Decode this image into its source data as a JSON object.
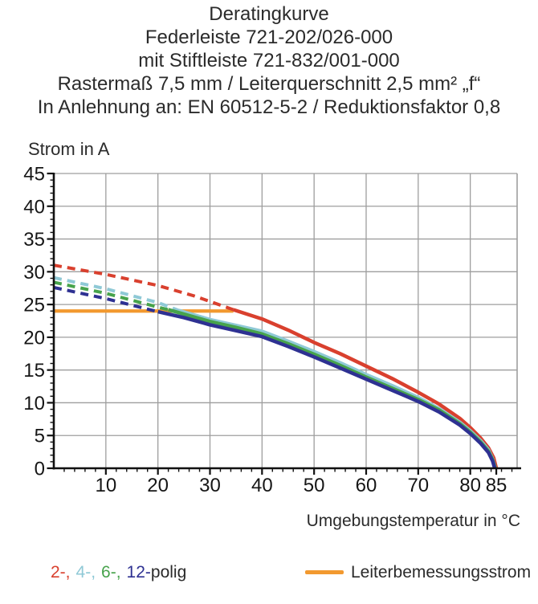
{
  "page": {
    "title_lines": [
      "Deratingkurve",
      "Federleiste 721-202/026-000",
      "mit Stiftleiste 721-832/001-000",
      "Rastermaß 7,5 mm / Leiterquerschnitt 2,5 mm² „f“",
      "In Anlehnung an: EN 60512-5-2 / Reduktionsfaktor 0,8"
    ],
    "legend": {
      "pole_items": [
        {
          "text": "2-,",
          "color": "#d9402e"
        },
        {
          "text": "4-,",
          "color": "#8fc9d6"
        },
        {
          "text": "6-,",
          "color": "#47a34c"
        },
        {
          "text": "12-",
          "color": "#2e3192"
        },
        {
          "text": "polig",
          "color": "#2a2a2a"
        }
      ],
      "rated_label": "Leiterbemessungsstrom",
      "rated_color": "#f2992f"
    }
  },
  "chart_data": {
    "type": "line",
    "title": "Deratingkurve",
    "xlabel": "Umgebungstemperatur in °C",
    "ylabel": "Strom in A",
    "xlim": [
      0,
      89
    ],
    "ylim": [
      0,
      45
    ],
    "x_tick_labels": [
      10,
      20,
      30,
      40,
      50,
      60,
      70,
      80,
      85
    ],
    "x_gridlines": [
      10,
      20,
      30,
      40,
      50,
      60,
      70,
      80
    ],
    "y_tick_labels": [
      0,
      5,
      10,
      15,
      20,
      25,
      30,
      35,
      40,
      45
    ],
    "x_minor_step": 2,
    "y_minor_step": 1,
    "grid": true,
    "grid_color": "#9e9e9e",
    "axis_color": "#111111",
    "legend_position": "bottom",
    "style_note": "curves dashed where above rated current line, solid below",
    "series": [
      {
        "name": "2-polig",
        "color": "#d9402e",
        "dash_until_x": 34.5,
        "points": [
          [
            0,
            31.0
          ],
          [
            10,
            29.6
          ],
          [
            20,
            27.9
          ],
          [
            27,
            26.3
          ],
          [
            34.5,
            24.2
          ],
          [
            40,
            22.8
          ],
          [
            45,
            21.1
          ],
          [
            50,
            19.2
          ],
          [
            55,
            17.5
          ],
          [
            60,
            15.6
          ],
          [
            65,
            13.7
          ],
          [
            70,
            11.6
          ],
          [
            74,
            9.8
          ],
          [
            78,
            7.6
          ],
          [
            80,
            6.2
          ],
          [
            82,
            4.6
          ],
          [
            83.5,
            3.1
          ],
          [
            84.5,
            1.6
          ],
          [
            85,
            0
          ]
        ]
      },
      {
        "name": "4-polig",
        "color": "#8fc9d6",
        "dash_until_x": 24,
        "points": [
          [
            0,
            29.1
          ],
          [
            10,
            27.4
          ],
          [
            20,
            25.3
          ],
          [
            24,
            24.1
          ],
          [
            30,
            22.7
          ],
          [
            35,
            21.8
          ],
          [
            40,
            20.9
          ],
          [
            45,
            19.4
          ],
          [
            50,
            17.8
          ],
          [
            55,
            16.1
          ],
          [
            60,
            14.3
          ],
          [
            65,
            12.6
          ],
          [
            70,
            10.8
          ],
          [
            74,
            9.1
          ],
          [
            78,
            7.0
          ],
          [
            80,
            5.7
          ],
          [
            82,
            4.2
          ],
          [
            83.5,
            2.8
          ],
          [
            84.3,
            1.4
          ],
          [
            84.8,
            0
          ]
        ]
      },
      {
        "name": "6-polig",
        "color": "#47a34c",
        "dash_until_x": 22,
        "points": [
          [
            0,
            28.4
          ],
          [
            10,
            26.7
          ],
          [
            20,
            24.6
          ],
          [
            22,
            24.2
          ],
          [
            30,
            22.4
          ],
          [
            35,
            21.5
          ],
          [
            40,
            20.5
          ],
          [
            45,
            19.0
          ],
          [
            50,
            17.4
          ],
          [
            55,
            15.7
          ],
          [
            60,
            13.9
          ],
          [
            65,
            12.2
          ],
          [
            70,
            10.5
          ],
          [
            74,
            8.9
          ],
          [
            78,
            6.8
          ],
          [
            80,
            5.5
          ],
          [
            82,
            4.0
          ],
          [
            83.5,
            2.6
          ],
          [
            84.3,
            1.3
          ],
          [
            84.8,
            0
          ]
        ]
      },
      {
        "name": "12-polig",
        "color": "#2e3192",
        "dash_until_x": 20,
        "points": [
          [
            0,
            27.6
          ],
          [
            10,
            25.9
          ],
          [
            20,
            23.9
          ],
          [
            25,
            23.0
          ],
          [
            30,
            21.9
          ],
          [
            35,
            21.0
          ],
          [
            40,
            20.1
          ],
          [
            45,
            18.6
          ],
          [
            50,
            17.0
          ],
          [
            55,
            15.3
          ],
          [
            60,
            13.6
          ],
          [
            65,
            11.9
          ],
          [
            70,
            10.2
          ],
          [
            74,
            8.6
          ],
          [
            78,
            6.6
          ],
          [
            80,
            5.3
          ],
          [
            82,
            3.8
          ],
          [
            83.5,
            2.4
          ],
          [
            84.3,
            1.1
          ],
          [
            84.7,
            0
          ]
        ]
      }
    ],
    "reference_line": {
      "label": "Leiterbemessungsstrom",
      "color": "#f2992f",
      "y": 24,
      "x_start": 0,
      "x_end": 34.5
    }
  }
}
